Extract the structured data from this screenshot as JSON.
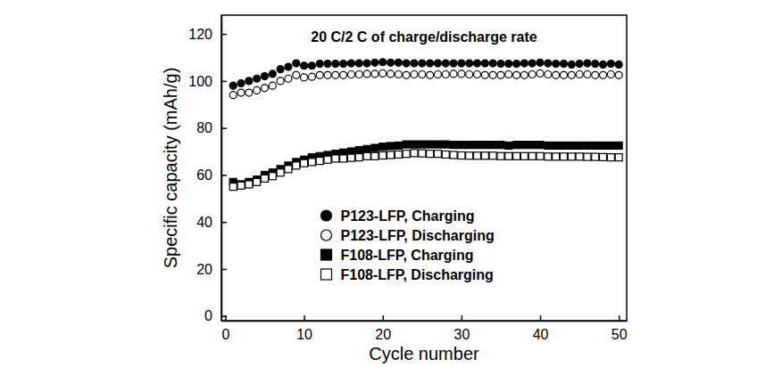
{
  "chart_data": {
    "type": "scatter",
    "title": "20 C/2 C of charge/discharge rate",
    "x_label": "Cycle number",
    "y_label": "Specific capacity (mAh/g)",
    "x": [
      1,
      2,
      3,
      4,
      5,
      6,
      7,
      8,
      9,
      10,
      11,
      12,
      13,
      14,
      15,
      16,
      17,
      18,
      19,
      20,
      21,
      22,
      23,
      24,
      25,
      26,
      27,
      28,
      29,
      30,
      31,
      32,
      33,
      34,
      35,
      36,
      37,
      38,
      39,
      40,
      41,
      42,
      43,
      44,
      45,
      46,
      47,
      48,
      49,
      50
    ],
    "series": [
      {
        "name": "P123-LFP, Charging",
        "color": "#000000",
        "marker": "circle",
        "values": [
          98,
          99,
          100,
          101,
          102,
          103,
          105,
          106,
          107.5,
          106.5,
          106.5,
          107.3,
          107.3,
          107.3,
          107.3,
          107.5,
          107.5,
          107.5,
          107.8,
          108,
          107.8,
          107.8,
          107.5,
          107.5,
          107.5,
          107.5,
          107.5,
          107.5,
          107.5,
          107.5,
          107.5,
          107.5,
          107.5,
          107.5,
          107.3,
          107.3,
          107.3,
          107.5,
          107.5,
          107.8,
          107.5,
          107.3,
          107.3,
          107,
          107.3,
          107.5,
          107.3,
          107,
          107.3,
          107
        ]
      },
      {
        "name": "P123-LFP, Discharging",
        "color": "#000000",
        "marker": "circle-open",
        "values": [
          94,
          95,
          95,
          96,
          97,
          98,
          100,
          101,
          102.5,
          101.5,
          101.8,
          102.5,
          102.5,
          102.5,
          102.5,
          102.8,
          102.8,
          103,
          103,
          103.2,
          103,
          102.8,
          102.5,
          102.8,
          102.8,
          102.5,
          102.8,
          102.8,
          103,
          103,
          102.8,
          102.8,
          102.5,
          102.5,
          102.5,
          102.8,
          102.5,
          102.5,
          102.8,
          103.2,
          102.8,
          102.5,
          102.5,
          102.5,
          102.8,
          102.8,
          102.5,
          102.5,
          102.8,
          102.5
        ]
      },
      {
        "name": "F108-LFP, Charging",
        "color": "#000000",
        "marker": "square",
        "values": [
          57,
          56,
          57,
          58,
          60,
          61,
          62.5,
          64,
          65.5,
          66.5,
          67.5,
          68,
          68.5,
          69,
          69.5,
          70,
          70.5,
          71,
          71.5,
          72,
          72.3,
          72.5,
          73,
          73,
          73,
          73,
          73,
          73,
          72.8,
          72.8,
          72.8,
          72.8,
          72.8,
          72.8,
          72.8,
          72.5,
          72.8,
          72.8,
          72.8,
          72.8,
          72.5,
          72.5,
          72.5,
          72.5,
          72.5,
          72.5,
          72.5,
          72.5,
          72.5,
          72.5
        ]
      },
      {
        "name": "F108-LFP, Discharging",
        "color": "#000000",
        "marker": "square-open",
        "values": [
          55,
          55.5,
          56,
          57,
          58.5,
          59.5,
          61,
          62.5,
          64,
          65,
          65.5,
          66,
          66.5,
          67,
          67,
          67.3,
          67.5,
          68,
          68,
          68.3,
          68.5,
          68.7,
          69,
          69.3,
          69.2,
          69,
          69,
          68.7,
          68.5,
          68.3,
          68.2,
          68.2,
          68.2,
          68.2,
          68,
          68,
          68,
          68,
          68,
          68,
          67.8,
          67.8,
          67.8,
          67.8,
          67.8,
          67.7,
          67.7,
          67.6,
          67.5,
          67.5
        ]
      }
    ],
    "xlim": [
      -0.5,
      51
    ],
    "xticks": [
      0,
      10,
      20,
      30,
      40,
      50
    ],
    "ylim": [
      -2,
      128
    ],
    "yticks": [
      0,
      20,
      40,
      60,
      80,
      100,
      120
    ],
    "legend": "lower center",
    "grid": false
  }
}
